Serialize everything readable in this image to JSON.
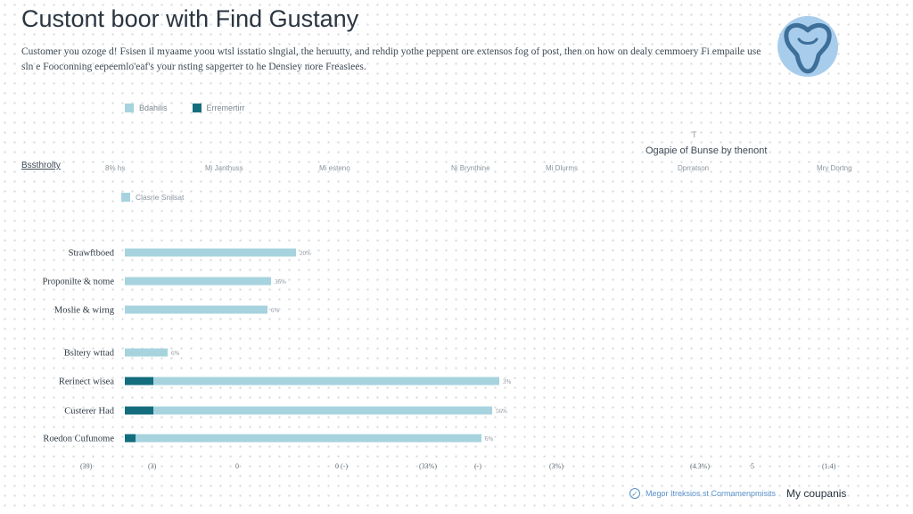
{
  "header": {
    "title": "Custont boor with Find Gustany",
    "subtitle": "Customer you ozoge d! Fsisen il myaame yoou wtsl isstatio slngial, the heruutty, and rehdip yothe peppent ore extensos fog of post, then on how on dealy cemmoery Fi empaile use sln e Fooconning eepeemlo'eaf's your nsting sapgerter to he Densiey nore Freasiees."
  },
  "logo": {
    "icon": "tooth-crown-icon",
    "bg_color": "#a8cdec",
    "fg_color": "#3d6f99"
  },
  "legend": [
    {
      "label": "Bdahilis",
      "color": "#a6d3de"
    },
    {
      "label": "Erremertirr",
      "color": "#136d7d"
    }
  ],
  "filter_label": "Bssthrolty",
  "column_headers": [
    "8% hs",
    "Mi Janthuss",
    "Mi esteno",
    "Ni Brynthine",
    "Mi Dlurms",
    "Dprratson",
    "Mry Dortng"
  ],
  "side_panel": {
    "title": "Ogapie of Bunse by thenont",
    "caret": "T"
  },
  "sub_legend": {
    "label": "Clasrie Snilsat",
    "color": "#a6d3de"
  },
  "chart_data": {
    "type": "bar",
    "orientation": "horizontal",
    "stacked": true,
    "categories": [
      "Strawftboed",
      "Proponilte & nome",
      "Moslie & wirng",
      "Bsltery wttad",
      "Rerinect wisea",
      "Custerer Had",
      "Roedon Cufunome"
    ],
    "series": [
      {
        "name": "Erremertirr",
        "color": "#136d7d",
        "values": [
          0,
          0,
          0,
          0,
          8,
          8,
          3
        ]
      },
      {
        "name": "Bdahilis",
        "color": "#a6d3de",
        "values": [
          48,
          41,
          40,
          12,
          97,
          95,
          97
        ]
      }
    ],
    "data_labels": [
      "20%",
      "36%",
      "6%",
      "6%",
      "3%",
      "56%",
      "6%"
    ],
    "tick_labels": [
      "(39)",
      "(3)",
      "0",
      "0 (-)",
      "(33%)",
      "(-)",
      "(3%)",
      "(4.3%)",
      "5",
      "(1.4)"
    ],
    "xlim": [
      0,
      150
    ],
    "grid": true,
    "legend_position": "top-left"
  },
  "footer": {
    "link_label": "Megor Itreksios st Cormamenpmisits",
    "right_label": "My coupanis"
  }
}
